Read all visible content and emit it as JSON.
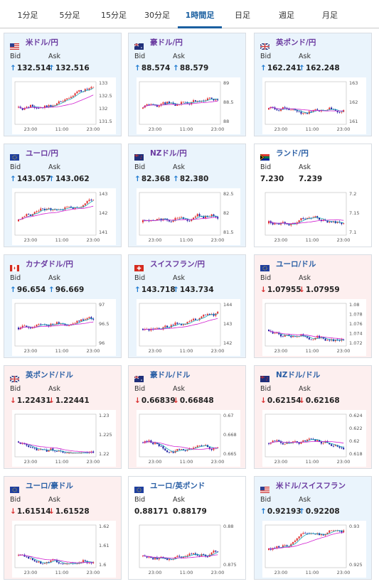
{
  "tabs": [
    {
      "label": "1分足",
      "active": false
    },
    {
      "label": "5分足",
      "active": false
    },
    {
      "label": "15分足",
      "active": false
    },
    {
      "label": "30分足",
      "active": false
    },
    {
      "label": "1時間足",
      "active": true
    },
    {
      "label": "日足",
      "active": false
    },
    {
      "label": "週足",
      "active": false
    },
    {
      "label": "月足",
      "active": false
    }
  ],
  "labels": {
    "bid": "Bid",
    "ask": "Ask"
  },
  "colors": {
    "up": "#1e7ad0",
    "down": "#d93030",
    "candle_up": "#e03030",
    "candle_down": "#1a1aa0",
    "ma_short": "#18a8b8",
    "ma_long": "#d020d0"
  },
  "pairs": [
    {
      "name": "米ドル/円",
      "flag": "us",
      "trend": "up",
      "bid": "132.514",
      "ask": "132.516",
      "bid_dir": "up",
      "ask_dir": "up",
      "chart": {
        "yticks": [
          "133",
          "132.5",
          "132",
          "131.5"
        ],
        "xticks": [
          "23:00",
          "11:00",
          "23:00"
        ]
      }
    },
    {
      "name": "豪ドル/円",
      "flag": "au",
      "trend": "up",
      "bid": "88.574",
      "ask": "88.579",
      "bid_dir": "up",
      "ask_dir": "up",
      "chart": {
        "yticks": [
          "89",
          "88.5",
          "88"
        ],
        "xticks": [
          "23:00",
          "11:00",
          "23:00"
        ]
      }
    },
    {
      "name": "英ポンド/円",
      "flag": "gb",
      "trend": "up",
      "bid": "162.241",
      "ask": "162.248",
      "bid_dir": "up",
      "ask_dir": "up",
      "chart": {
        "yticks": [
          "163",
          "162",
          "161"
        ],
        "xticks": [
          "23:00",
          "11:00",
          "23:00"
        ]
      }
    },
    {
      "name": "ユーロ/円",
      "flag": "eu",
      "trend": "up",
      "bid": "143.057",
      "ask": "143.062",
      "bid_dir": "up",
      "ask_dir": "up",
      "chart": {
        "yticks": [
          "143",
          "142",
          "141"
        ],
        "xticks": [
          "23:00",
          "11:00",
          "23:00"
        ]
      }
    },
    {
      "name": "NZドル/円",
      "flag": "nz",
      "trend": "up",
      "bid": "82.368",
      "ask": "82.380",
      "bid_dir": "up",
      "ask_dir": "up",
      "chart": {
        "yticks": [
          "82.5",
          "82",
          "81.5"
        ],
        "xticks": [
          "23:00",
          "11:00",
          "23:00"
        ]
      }
    },
    {
      "name": "ランド/円",
      "flag": "za",
      "trend": "flat",
      "bid": "7.230",
      "ask": "7.239",
      "bid_dir": "",
      "ask_dir": "",
      "chart": {
        "yticks": [
          "7.2",
          "7.15",
          "7.1"
        ],
        "xticks": [
          "23:00",
          "11:00",
          "23:00"
        ]
      }
    },
    {
      "name": "カナダドル/円",
      "flag": "ca",
      "trend": "up",
      "bid": "96.654",
      "ask": "96.669",
      "bid_dir": "up",
      "ask_dir": "up",
      "chart": {
        "yticks": [
          "97",
          "96.5",
          "96"
        ],
        "xticks": [
          "23:00",
          "11:00",
          "23:00"
        ]
      }
    },
    {
      "name": "スイスフラン/円",
      "flag": "ch",
      "trend": "up",
      "bid": "143.718",
      "ask": "143.734",
      "bid_dir": "up",
      "ask_dir": "up",
      "chart": {
        "yticks": [
          "144",
          "143",
          "142"
        ],
        "xticks": [
          "23:00",
          "11:00",
          "23:00"
        ]
      }
    },
    {
      "name": "ユーロ/ドル",
      "flag": "eu",
      "trend": "down",
      "bid": "1.07955",
      "ask": "1.07959",
      "bid_dir": "down",
      "ask_dir": "down",
      "chart": {
        "yticks": [
          "1.08",
          "1.078",
          "1.076",
          "1.074",
          "1.072"
        ],
        "xticks": [
          "23:00",
          "11:00",
          "23:00"
        ]
      }
    },
    {
      "name": "英ポンド/ドル",
      "flag": "gb",
      "trend": "down",
      "bid": "1.22431",
      "ask": "1.22441",
      "bid_dir": "down",
      "ask_dir": "down",
      "chart": {
        "yticks": [
          "1.23",
          "1.225",
          "1.22"
        ],
        "xticks": [
          "23:00",
          "11:00",
          "23:00"
        ]
      }
    },
    {
      "name": "豪ドル/ドル",
      "flag": "au",
      "trend": "down",
      "bid": "0.66839",
      "ask": "0.66848",
      "bid_dir": "down",
      "ask_dir": "down",
      "chart": {
        "yticks": [
          "0.67",
          "0.668",
          "0.665"
        ],
        "xticks": [
          "23:00",
          "11:00",
          "23:00"
        ]
      }
    },
    {
      "name": "NZドル/ドル",
      "flag": "nz",
      "trend": "down",
      "bid": "0.62154",
      "ask": "0.62168",
      "bid_dir": "down",
      "ask_dir": "down",
      "chart": {
        "yticks": [
          "0.624",
          "0.622",
          "0.62",
          "0.618"
        ],
        "xticks": [
          "23:00",
          "11:00",
          "23:00"
        ]
      }
    },
    {
      "name": "ユーロ/豪ドル",
      "flag": "eu",
      "trend": "down",
      "bid": "1.61514",
      "ask": "1.61528",
      "bid_dir": "down",
      "ask_dir": "down",
      "chart": {
        "yticks": [
          "1.62",
          "1.61",
          "1.6"
        ],
        "xticks": [
          "23:00",
          "11:00",
          "23:00"
        ]
      }
    },
    {
      "name": "ユーロ/英ポンド",
      "flag": "eu",
      "trend": "flat",
      "bid": "0.88171",
      "ask": "0.88179",
      "bid_dir": "",
      "ask_dir": "",
      "chart": {
        "yticks": [
          "0.88",
          "0.875"
        ],
        "xticks": [
          "23:00",
          "11:00",
          "23:00"
        ]
      }
    },
    {
      "name": "米ドル/スイスフラン",
      "flag": "us",
      "trend": "up",
      "bid": "0.92193",
      "ask": "0.92208",
      "bid_dir": "up",
      "ask_dir": "up",
      "chart": {
        "yticks": [
          "0.93",
          "0.925"
        ],
        "xticks": [
          "23:00",
          "11:00",
          "23:00"
        ]
      }
    }
  ]
}
